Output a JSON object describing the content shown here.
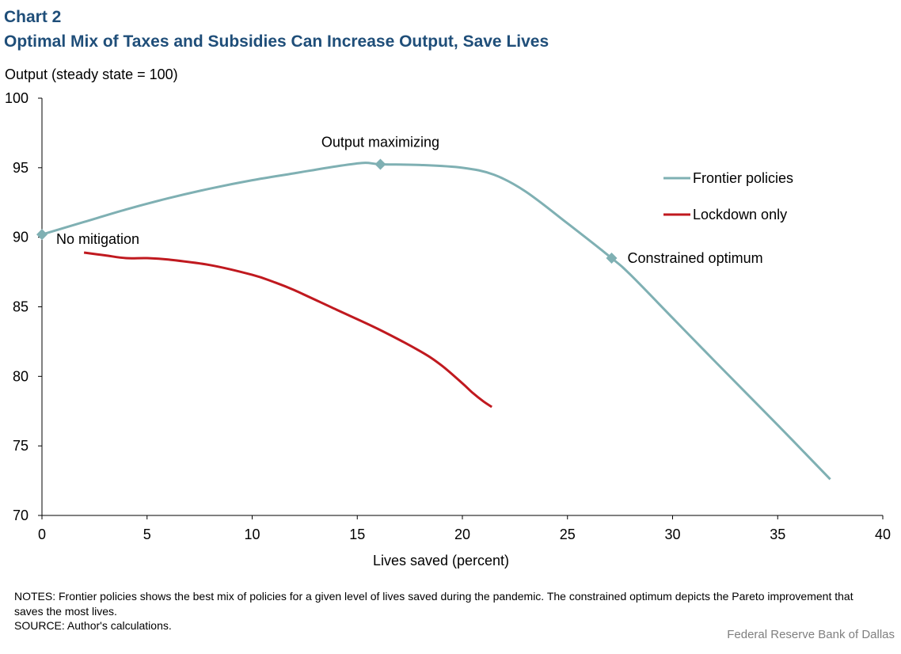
{
  "header": {
    "chart_number": "Chart 2",
    "title": "Optimal Mix of Taxes and Subsidies Can Increase Output, Save Lives"
  },
  "footer": {
    "notes": "NOTES: Frontier policies shows the best mix of policies for a given level of lives saved during the pandemic. The constrained optimum depicts the Pareto improvement that saves the most lives.",
    "source": "SOURCE: Author's calculations.",
    "credit": "Federal Reserve Bank of Dallas"
  },
  "colors": {
    "frontier": "#7fb0b3",
    "lockdown": "#c0191f",
    "title": "#1f4e79"
  },
  "chart_data": {
    "type": "line",
    "title": "Optimal Mix of Taxes and Subsidies Can Increase Output, Save Lives",
    "xlabel": "Lives saved (percent)",
    "ylabel": "Output (steady state = 100)",
    "xlim": [
      0,
      40
    ],
    "ylim": [
      70,
      100
    ],
    "x_ticks": [
      0,
      5,
      10,
      15,
      20,
      25,
      30,
      35,
      40
    ],
    "y_ticks": [
      70,
      75,
      80,
      85,
      90,
      95,
      100
    ],
    "grid": false,
    "legend_position": "top-right",
    "series": [
      {
        "name": "Frontier policies",
        "color": "#7fb0b3",
        "x": [
          0,
          2,
          4,
          6,
          8,
          10,
          12,
          14,
          15.3,
          16.1,
          18,
          20,
          21.5,
          23,
          25,
          27.1,
          28,
          30,
          32,
          35,
          37.5
        ],
        "y": [
          90.2,
          91.1,
          92.0,
          92.8,
          93.5,
          94.1,
          94.6,
          95.1,
          95.35,
          95.25,
          95.2,
          95.0,
          94.5,
          93.3,
          91.0,
          88.5,
          87.3,
          84.2,
          81.1,
          76.5,
          72.6
        ]
      },
      {
        "name": "Lockdown only",
        "color": "#c0191f",
        "x": [
          2,
          3,
          4,
          5,
          6,
          8,
          10,
          11,
          12,
          14,
          16,
          18,
          19,
          20,
          20.5,
          21,
          21.4
        ],
        "y": [
          88.9,
          88.7,
          88.5,
          88.5,
          88.4,
          88.0,
          87.3,
          86.8,
          86.2,
          84.8,
          83.4,
          81.8,
          80.8,
          79.5,
          78.8,
          78.2,
          77.8
        ]
      }
    ],
    "markers": [
      {
        "label": "No mitigation",
        "x": 0,
        "y": 90.2
      },
      {
        "label": "Output maximizing",
        "x": 16.1,
        "y": 95.25
      },
      {
        "label": "Constrained optimum",
        "x": 27.1,
        "y": 88.5
      }
    ]
  }
}
